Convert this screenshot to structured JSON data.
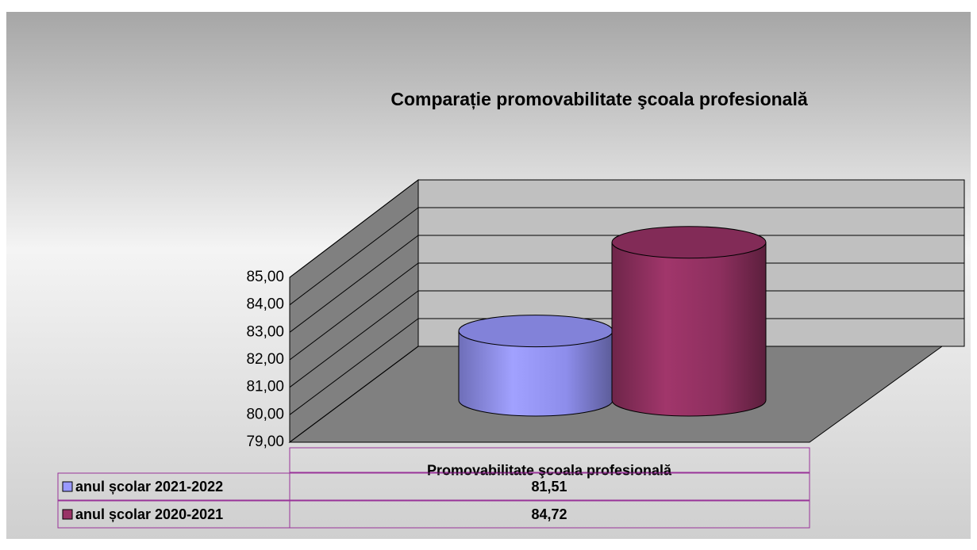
{
  "chart_data": {
    "type": "bar3d",
    "title": "Comparație promovabilitate şcoala profesională",
    "categories": [
      "Promovabilitate şcoala profesională"
    ],
    "series": [
      {
        "name": "anul școlar 2021-2022",
        "color": "#9999ff",
        "values": [
          81.51
        ],
        "value_labels": [
          "81,51"
        ]
      },
      {
        "name": "anul școlar 2020-2021",
        "color": "#993366",
        "values": [
          84.72
        ],
        "value_labels": [
          "84,72"
        ]
      }
    ],
    "ylim": [
      79,
      85
    ],
    "yticks": [
      {
        "value": 79,
        "label": "79,00"
      },
      {
        "value": 80,
        "label": "80,00"
      },
      {
        "value": 81,
        "label": "81,00"
      },
      {
        "value": 82,
        "label": "82,00"
      },
      {
        "value": 83,
        "label": "83,00"
      },
      {
        "value": 84,
        "label": "84,00"
      },
      {
        "value": 85,
        "label": "85,00"
      }
    ],
    "grid": true
  }
}
